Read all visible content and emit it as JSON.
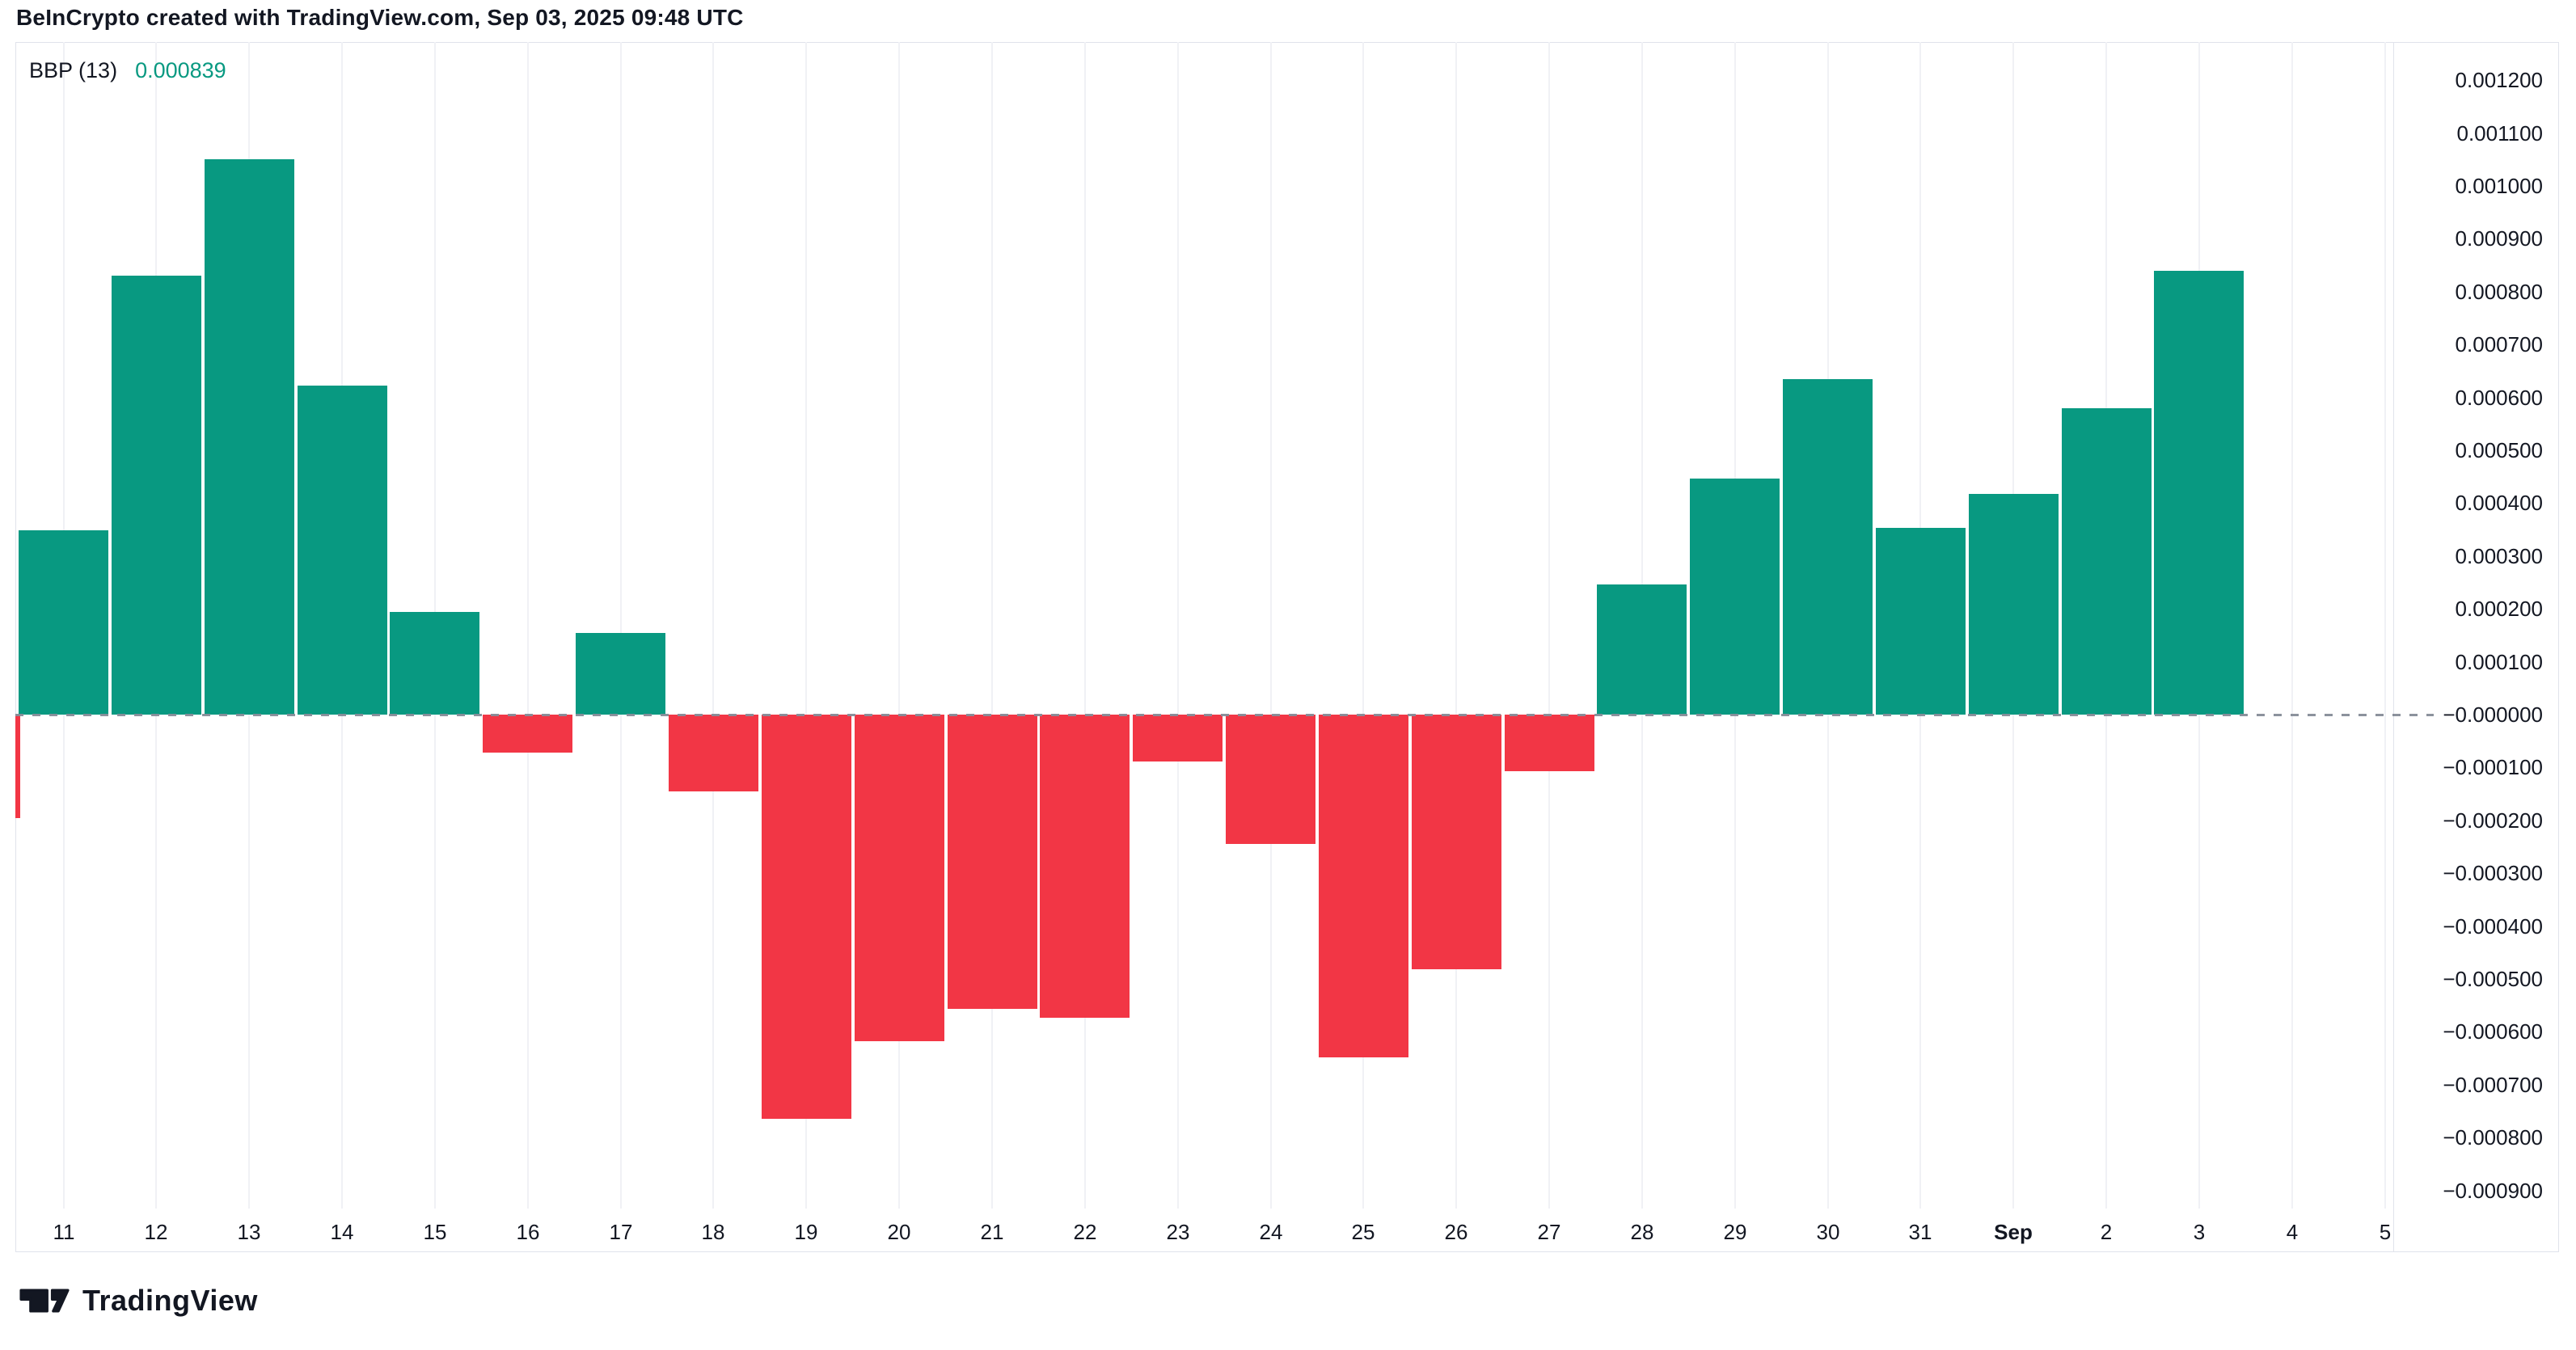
{
  "header": {
    "title": "BeInCrypto created with TradingView.com, Sep 03, 2025 09:48 UTC"
  },
  "legend": {
    "indicator": "BBP (13)",
    "value": "0.000839",
    "value_color": "#089981"
  },
  "watermark": {
    "brand": "TradingView"
  },
  "axis": {
    "y_labels": [
      "0.001200",
      "0.001100",
      "0.001000",
      "0.000900",
      "0.000800",
      "0.000700",
      "0.000600",
      "0.000500",
      "0.000400",
      "0.000300",
      "0.000200",
      "0.000100",
      "−0.000000",
      "−0.000100",
      "−0.000200",
      "−0.000300",
      "−0.000400",
      "−0.000500",
      "−0.000600",
      "−0.000700",
      "−0.000800",
      "−0.000900"
    ],
    "y_max": 0.0012,
    "y_step": 0.0001,
    "x_labels": [
      "11",
      "12",
      "13",
      "14",
      "15",
      "16",
      "17",
      "18",
      "19",
      "20",
      "21",
      "22",
      "23",
      "24",
      "25",
      "26",
      "27",
      "28",
      "29",
      "30",
      "31",
      "Sep",
      "2",
      "3",
      "4",
      "5"
    ],
    "x_bold_label": "Sep"
  },
  "chart_data": {
    "type": "bar",
    "title": "BBP (13) Bull Bear Power daily histogram",
    "categories": [
      "11",
      "12",
      "13",
      "14",
      "15",
      "16",
      "17",
      "18",
      "19",
      "20",
      "21",
      "22",
      "23",
      "24",
      "25",
      "26",
      "27",
      "28",
      "29",
      "30",
      "31",
      "Sep",
      "2",
      "3",
      "4",
      "5"
    ],
    "values": [
      0.000348,
      0.00083,
      0.00105,
      0.000622,
      0.000194,
      -7.2e-05,
      0.000155,
      -0.000145,
      -0.000764,
      -0.000618,
      -0.000557,
      -0.000574,
      -8.8e-05,
      -0.000244,
      -0.000649,
      -0.000482,
      -0.000107,
      0.000246,
      0.000446,
      0.000634,
      0.000353,
      0.000418,
      0.000579,
      0.000839,
      null,
      null
    ],
    "clipped_left_bar": {
      "category": "10",
      "value": -0.000196
    },
    "last_value": 0.000839,
    "positive_color": "#089981",
    "negative_color": "#f23645",
    "zero_line_style": "dashed",
    "zero_line_color": "#868c98",
    "ylim": [
      -0.0009,
      0.0012
    ],
    "grid": "faint vertical per day",
    "legend_position": "top-left"
  }
}
